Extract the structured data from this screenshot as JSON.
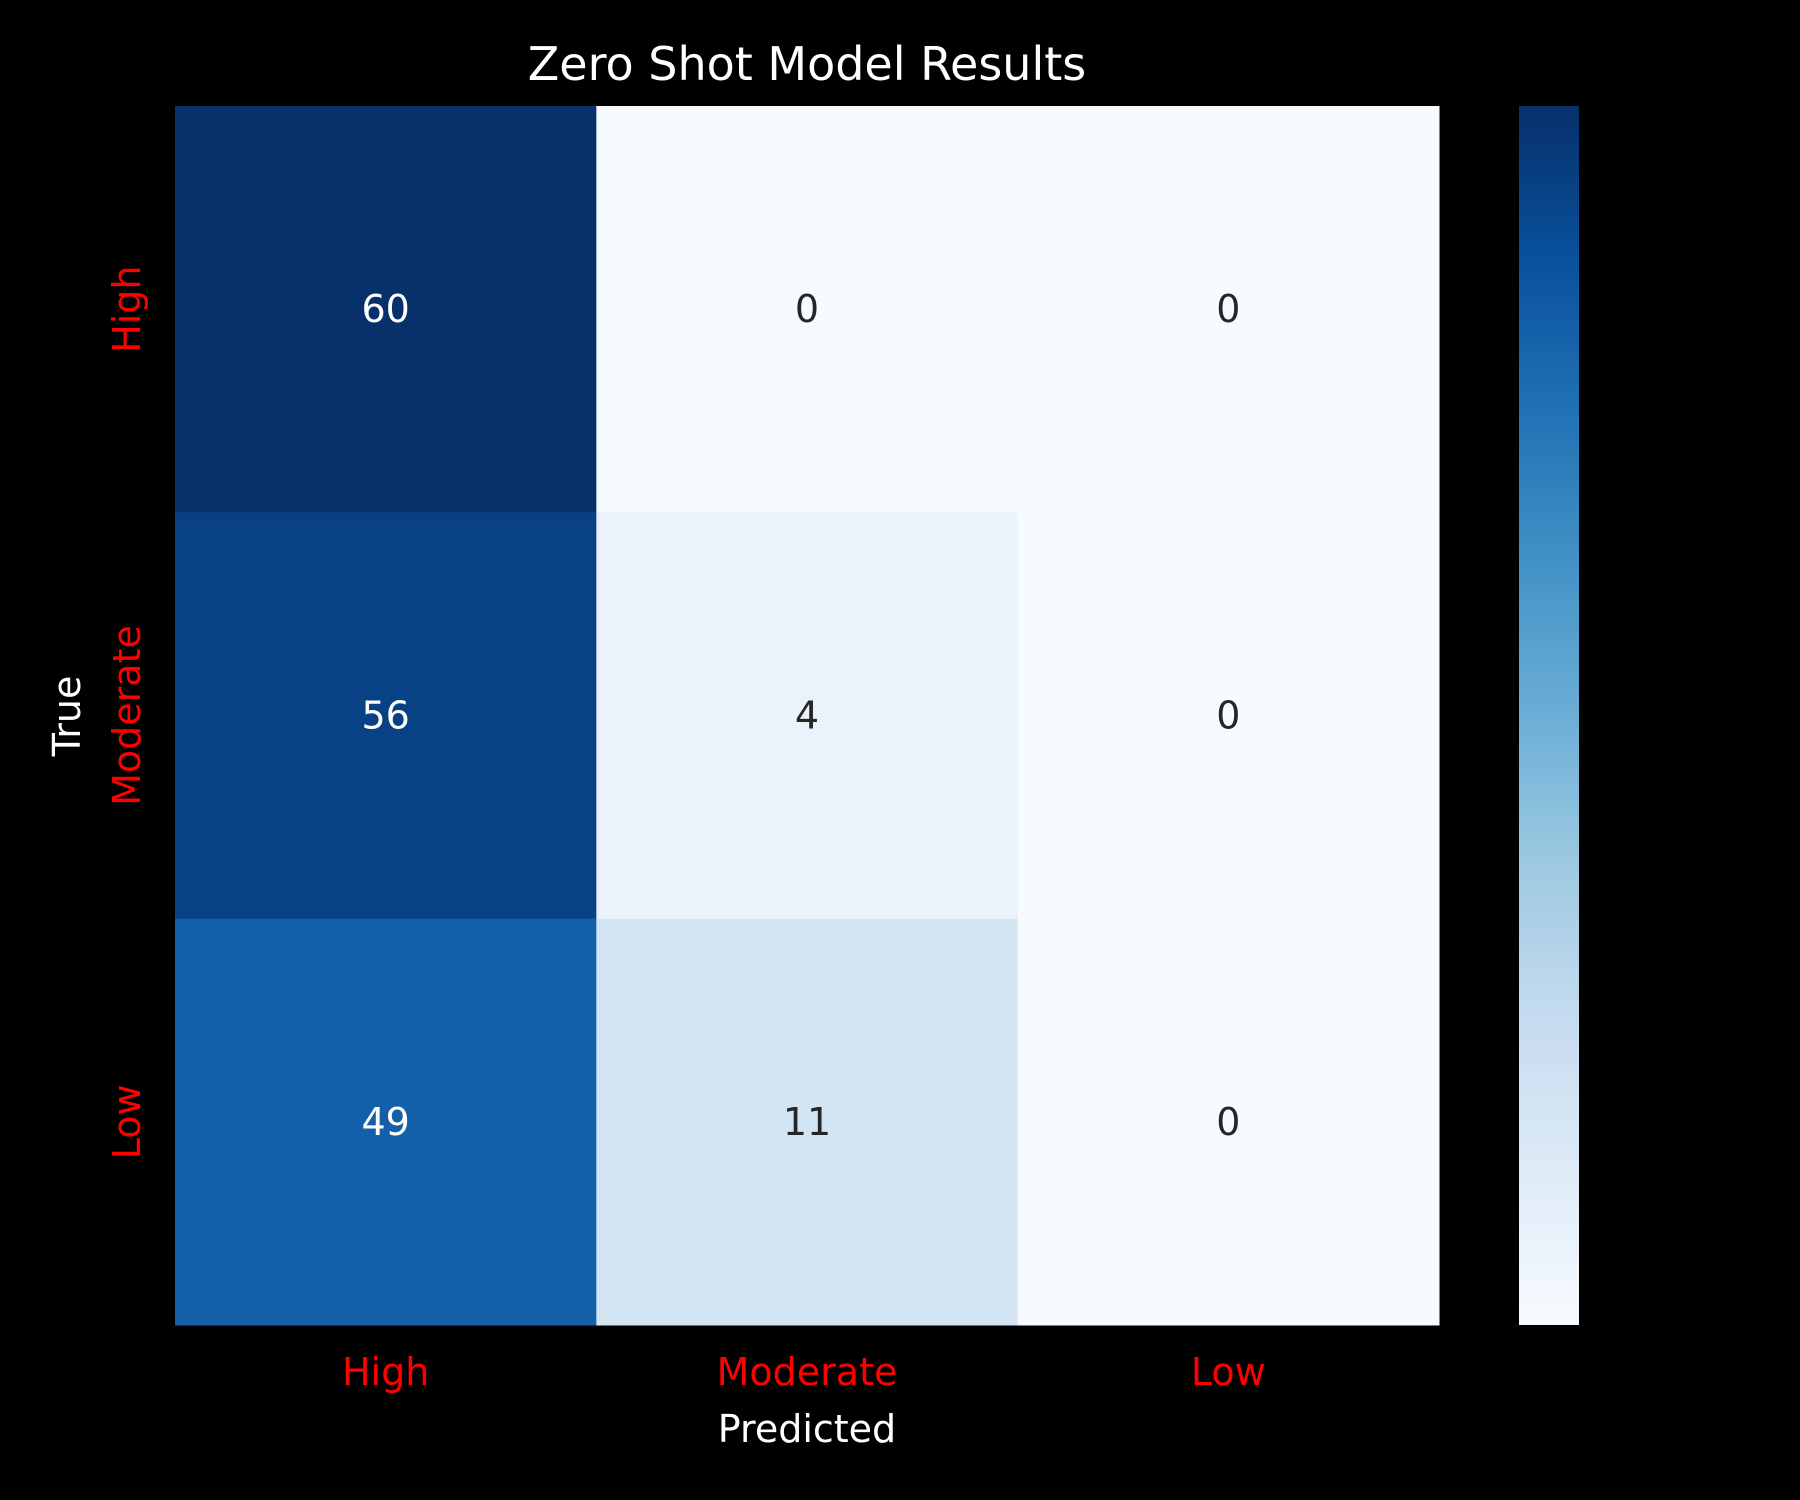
{
  "chart_data": {
    "type": "heatmap",
    "title": "Zero Shot Model Results",
    "xlabel": "Predicted",
    "ylabel": "True",
    "x_categories": [
      "High",
      "Moderate",
      "Low"
    ],
    "y_categories": [
      "High",
      "Moderate",
      "Low"
    ],
    "values": [
      [
        60,
        0,
        0
      ],
      [
        56,
        4,
        0
      ],
      [
        49,
        11,
        0
      ]
    ],
    "colormap": "Blues",
    "color_range": [
      0,
      60
    ],
    "colorbar": true,
    "colorbar_ticks": [],
    "grid": false,
    "colors": {
      "background": "#000000",
      "title": "#ffffff",
      "axis_label": "#ffffff",
      "tick_label": "#ff0000",
      "annotation_dark_cell": "#ffffff",
      "annotation_light_cell": "#262626"
    }
  }
}
